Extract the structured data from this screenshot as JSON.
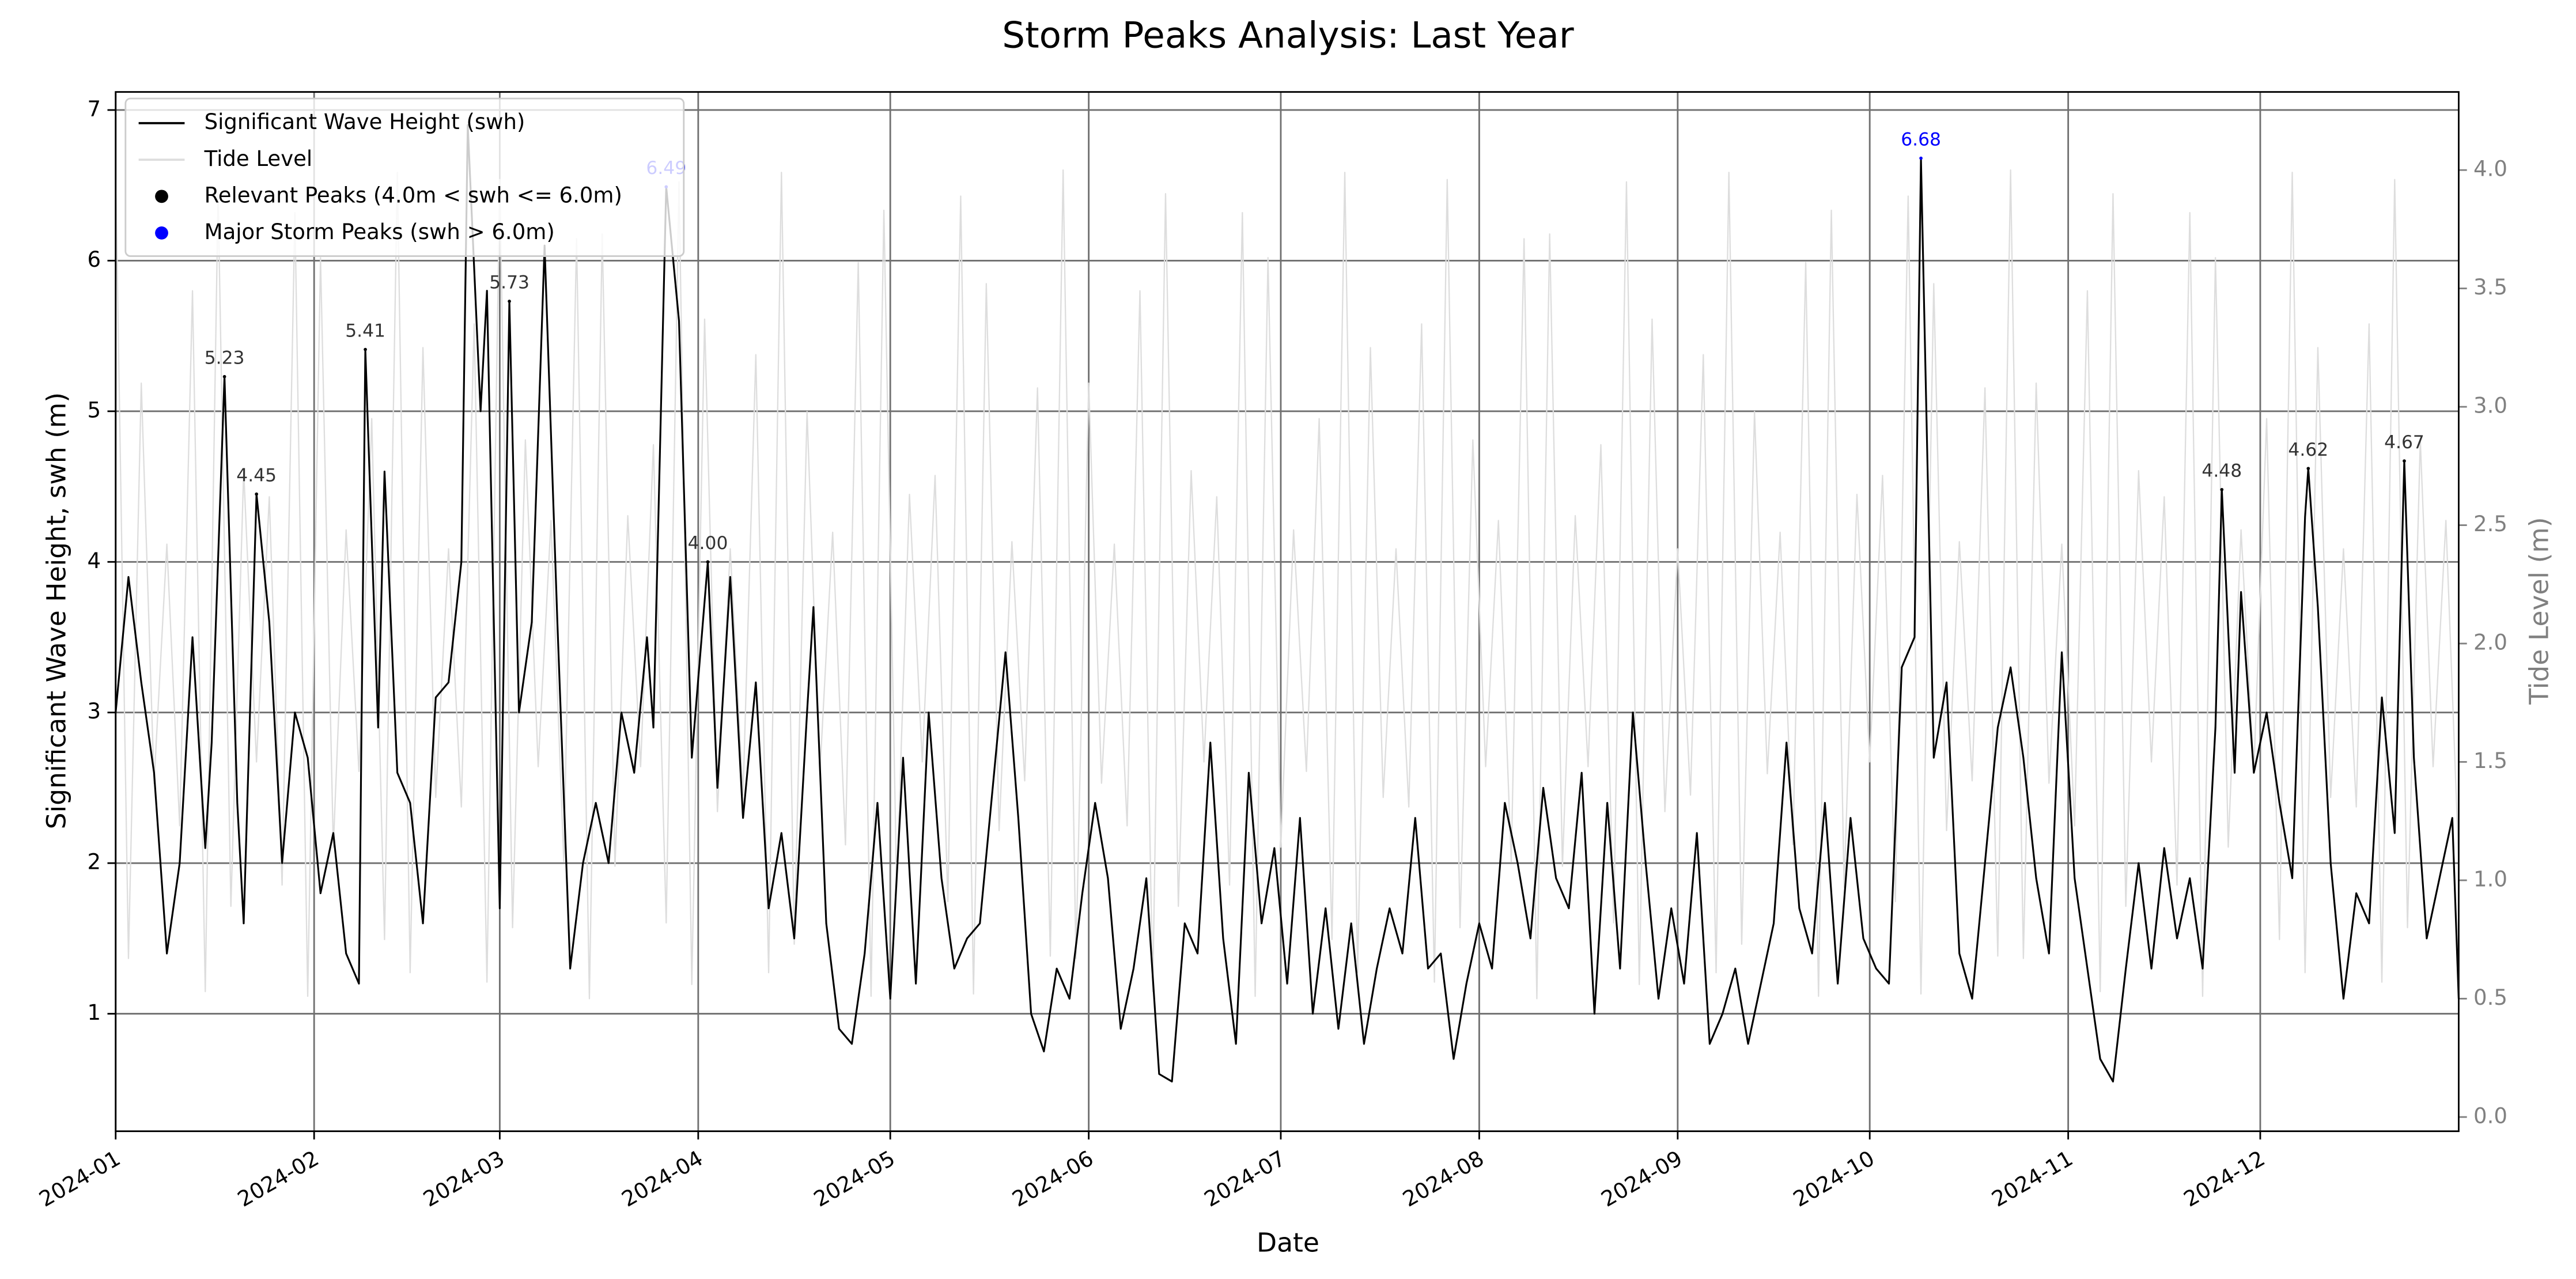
{
  "chart_data": {
    "type": "line",
    "title": "Storm Peaks Analysis: Last Year",
    "x_label": "Date",
    "y_label": "Significant Wave Height, swh (m)",
    "y2_label": "Tide Level (m)",
    "xlim": [
      0,
      366
    ],
    "xticks": [
      {
        "value": 0,
        "label": "2024-01"
      },
      {
        "value": 31,
        "label": "2024-02"
      },
      {
        "value": 60,
        "label": "2024-03"
      },
      {
        "value": 91,
        "label": "2024-04"
      },
      {
        "value": 121,
        "label": "2024-05"
      },
      {
        "value": 152,
        "label": "2024-06"
      },
      {
        "value": 182,
        "label": "2024-07"
      },
      {
        "value": 213,
        "label": "2024-08"
      },
      {
        "value": 244,
        "label": "2024-09"
      },
      {
        "value": 274,
        "label": "2024-10"
      },
      {
        "value": 305,
        "label": "2024-11"
      },
      {
        "value": 335,
        "label": "2024-12"
      }
    ],
    "ylim": [
      0.22,
      7.12
    ],
    "yticks": [
      1,
      2,
      3,
      4,
      5,
      6,
      7
    ],
    "y2lim": [
      -0.06,
      4.33
    ],
    "y2ticks": [
      {
        "value": 0,
        "label": "0.0"
      },
      0.5,
      {
        "value": 1,
        "label": "1.0"
      },
      1.5,
      {
        "value": 2,
        "label": "2.0"
      },
      2.5,
      {
        "value": 3,
        "label": "3.0"
      },
      3.5,
      {
        "value": 4,
        "label": "4.0"
      }
    ],
    "grid": true,
    "legend": "upper left",
    "series": [
      {
        "name": "Significant Wave Height (swh)",
        "type": "line",
        "color": "#000000",
        "x": [
          0,
          2,
          4,
          6,
          8,
          10,
          12,
          14,
          15,
          17,
          19,
          20,
          22,
          24,
          26,
          28,
          30,
          32,
          34,
          36,
          38,
          39,
          41,
          42,
          44,
          46,
          48,
          50,
          52,
          54,
          55,
          57,
          58,
          60,
          61.5,
          63,
          65,
          67,
          69,
          71,
          73,
          75,
          77,
          79,
          81,
          83,
          84,
          86,
          88,
          90,
          92.5,
          94,
          96,
          98,
          100,
          102,
          104,
          106,
          108,
          109,
          111,
          113,
          115,
          117,
          119,
          121,
          123,
          125,
          127,
          129,
          131,
          133,
          135,
          137,
          139,
          141,
          143,
          145,
          147,
          149,
          151,
          153,
          155,
          157,
          159,
          161,
          163,
          165,
          167,
          169,
          171,
          173,
          175,
          177,
          179,
          181,
          183,
          185,
          187,
          189,
          191,
          193,
          195,
          197,
          199,
          201,
          203,
          205,
          207,
          209,
          211,
          213,
          215,
          217,
          219,
          221,
          223,
          225,
          227,
          229,
          231,
          233,
          235,
          237,
          239,
          241,
          243,
          245,
          247,
          249,
          251,
          253,
          255,
          257,
          259,
          261,
          263,
          265,
          267,
          269,
          271,
          273,
          275,
          277,
          279,
          281,
          282,
          284,
          286,
          288,
          290,
          292,
          294,
          296,
          298,
          300,
          302,
          304,
          306,
          308,
          310,
          312,
          314,
          316,
          318,
          320,
          322,
          324,
          326,
          328,
          329,
          331,
          332,
          334,
          336,
          338,
          340,
          342,
          342.5,
          344,
          346,
          348,
          350,
          352,
          354,
          356,
          357.5,
          359,
          361,
          363,
          365,
          366
        ],
        "values": [
          3.0,
          3.9,
          3.2,
          2.6,
          1.4,
          2.0,
          3.5,
          2.1,
          2.8,
          5.23,
          2.4,
          1.6,
          4.45,
          3.6,
          2.0,
          3.0,
          2.7,
          1.8,
          2.2,
          1.4,
          1.2,
          5.41,
          2.9,
          4.6,
          2.6,
          2.4,
          1.6,
          3.1,
          3.2,
          4.0,
          6.9,
          5.0,
          5.8,
          1.7,
          5.73,
          3.0,
          3.6,
          6.1,
          3.6,
          1.3,
          2.0,
          2.4,
          2.0,
          3.0,
          2.6,
          3.5,
          2.9,
          6.49,
          5.6,
          2.7,
          4.0,
          2.5,
          3.9,
          2.3,
          3.2,
          1.7,
          2.2,
          1.5,
          3.0,
          3.7,
          1.6,
          0.9,
          0.8,
          1.4,
          2.4,
          1.1,
          2.7,
          1.2,
          3.0,
          1.9,
          1.3,
          1.5,
          1.6,
          2.5,
          3.4,
          2.3,
          1.0,
          0.75,
          1.3,
          1.1,
          1.8,
          2.4,
          1.9,
          0.9,
          1.3,
          1.9,
          0.6,
          0.55,
          1.6,
          1.4,
          2.8,
          1.5,
          0.8,
          2.6,
          1.6,
          2.1,
          1.2,
          2.3,
          1.0,
          1.7,
          0.9,
          1.6,
          0.8,
          1.3,
          1.7,
          1.4,
          2.3,
          1.3,
          1.4,
          0.7,
          1.2,
          1.6,
          1.3,
          2.4,
          2.0,
          1.5,
          2.5,
          1.9,
          1.7,
          2.6,
          1.0,
          2.4,
          1.3,
          3.0,
          2.0,
          1.1,
          1.7,
          1.2,
          2.2,
          0.8,
          1.0,
          1.3,
          0.8,
          1.2,
          1.6,
          2.8,
          1.7,
          1.4,
          2.4,
          1.2,
          2.3,
          1.5,
          1.3,
          1.2,
          3.3,
          3.5,
          6.68,
          2.7,
          3.2,
          1.4,
          1.1,
          2.0,
          2.9,
          3.3,
          2.7,
          1.9,
          1.4,
          3.4,
          1.9,
          1.3,
          0.7,
          0.55,
          1.3,
          2.0,
          1.3,
          2.1,
          1.5,
          1.9,
          1.3,
          2.9,
          4.48,
          2.6,
          3.8,
          2.6,
          3.0,
          2.4,
          1.9,
          4.3,
          4.62,
          3.7,
          2.0,
          1.1,
          1.8,
          1.6,
          3.1,
          2.2,
          4.67,
          2.7,
          1.5,
          1.9,
          2.3,
          1.1
        ]
      },
      {
        "name": "Tide Level",
        "type": "line",
        "color": "#dddddd",
        "axis": "y2",
        "x": [
          0,
          2,
          4,
          6,
          8,
          10,
          12,
          14,
          16,
          18,
          20,
          22,
          24,
          26,
          28,
          30,
          32,
          34,
          36,
          38,
          40,
          42,
          44,
          46,
          48,
          50,
          52,
          54,
          56,
          58,
          60,
          62,
          64,
          66,
          68,
          70,
          72,
          74,
          76,
          78,
          80,
          82,
          84,
          86,
          88,
          90,
          92,
          94,
          96,
          98,
          100,
          102,
          104,
          106,
          108,
          110,
          112,
          114,
          116,
          118,
          120,
          122,
          124,
          126,
          128,
          130,
          132,
          134,
          136,
          138,
          140,
          142,
          144,
          146,
          148,
          150,
          152,
          154,
          156,
          158,
          160,
          162,
          164,
          166,
          168,
          170,
          172,
          174,
          176,
          178,
          180,
          182,
          184,
          186,
          188,
          190,
          192,
          194,
          196,
          198,
          200,
          202,
          204,
          206,
          208,
          210,
          212,
          214,
          216,
          218,
          220,
          222,
          224,
          226,
          228,
          230,
          232,
          234,
          236,
          238,
          240,
          242,
          244,
          246,
          248,
          250,
          252,
          254,
          256,
          258,
          260,
          262,
          264,
          266,
          268,
          270,
          272,
          274,
          276,
          278,
          280,
          282,
          284,
          286,
          288,
          290,
          292,
          294,
          296,
          298,
          300,
          302,
          304,
          306,
          308,
          310,
          312,
          314,
          316,
          318,
          320,
          322,
          324,
          326,
          328,
          330,
          332,
          334,
          336,
          338,
          340,
          342,
          344,
          346,
          348,
          350,
          352,
          354,
          356,
          358,
          360,
          362,
          364,
          366
        ],
        "values": [
          4.0,
          0.67,
          3.1,
          1.41,
          2.42,
          1.23,
          3.49,
          0.53,
          3.9,
          0.89,
          2.73,
          1.5,
          2.62,
          0.98,
          3.82,
          0.51,
          3.63,
          1.14,
          2.48,
          1.46,
          2.95,
          0.75,
          3.99,
          0.61,
          3.25,
          1.35,
          2.4,
          1.31,
          3.35,
          0.57,
          3.96,
          0.8,
          2.86,
          1.48,
          2.52,
          1.08,
          3.71,
          0.5,
          3.73,
          1.06,
          2.54,
          1.48,
          2.84,
          0.82,
          3.95,
          0.56,
          3.37,
          1.29,
          2.4,
          1.36,
          3.22,
          0.61,
          3.99,
          0.73,
          2.98,
          1.45,
          2.47,
          1.15,
          3.61,
          0.51,
          3.83,
          0.97,
          2.63,
          1.5,
          2.71,
          0.91,
          3.89,
          0.52,
          3.52,
          1.21,
          2.43,
          1.42,
          3.08,
          0.68,
          4.0,
          0.67,
          3.1,
          1.41,
          2.42,
          1.23,
          3.49,
          0.53,
          3.9,
          0.89,
          2.73,
          1.5,
          2.62,
          0.98,
          3.82,
          0.51,
          3.63,
          1.14,
          2.48,
          1.46,
          2.95,
          0.75,
          3.99,
          0.61,
          3.25,
          1.35,
          2.4,
          1.31,
          3.35,
          0.57,
          3.96,
          0.8,
          2.86,
          1.48,
          2.52,
          1.08,
          3.71,
          0.5,
          3.73,
          1.06,
          2.54,
          1.48,
          2.84,
          0.82,
          3.95,
          0.56,
          3.37,
          1.29,
          2.4,
          1.36,
          3.22,
          0.61,
          3.99,
          0.73,
          2.98,
          1.45,
          2.47,
          1.15,
          3.61,
          0.51,
          3.83,
          0.97,
          2.63,
          1.5,
          2.71,
          0.91,
          3.89,
          0.52,
          3.52,
          1.21,
          2.43,
          1.42,
          3.08,
          0.68,
          4.0,
          0.67,
          3.1,
          1.41,
          2.42,
          1.23,
          3.49,
          0.53,
          3.9,
          0.89,
          2.73,
          1.5,
          2.62,
          0.98,
          3.82,
          0.51,
          3.63,
          1.14,
          2.48,
          1.46,
          2.95,
          0.75,
          3.99,
          0.61,
          3.25,
          1.35,
          2.4,
          1.31,
          3.35,
          0.57,
          3.96,
          0.8,
          2.86,
          1.48,
          2.52,
          1.08
        ]
      },
      {
        "name": "Relevant Peaks (4.0m < swh <= 6.0m)",
        "type": "scatter",
        "color": "#000000",
        "label_color": "#333333",
        "x": [
          17,
          22,
          39,
          61.5,
          92.5,
          329,
          342.5,
          357.5
        ],
        "values": [
          5.23,
          4.45,
          5.41,
          5.73,
          4.0,
          4.48,
          4.62,
          4.67
        ],
        "value_labels": [
          "5.23",
          "4.45",
          "5.41",
          "5.73",
          "4.00",
          "4.48",
          "4.62",
          "4.67"
        ]
      },
      {
        "name": "Major Storm Peaks (swh > 6.0m)",
        "type": "scatter",
        "color": "#0000ff",
        "label_color": "#0000ff",
        "x": [
          86,
          282
        ],
        "values": [
          6.49,
          6.68
        ],
        "value_labels": [
          "6.49",
          "6.68"
        ]
      }
    ]
  }
}
